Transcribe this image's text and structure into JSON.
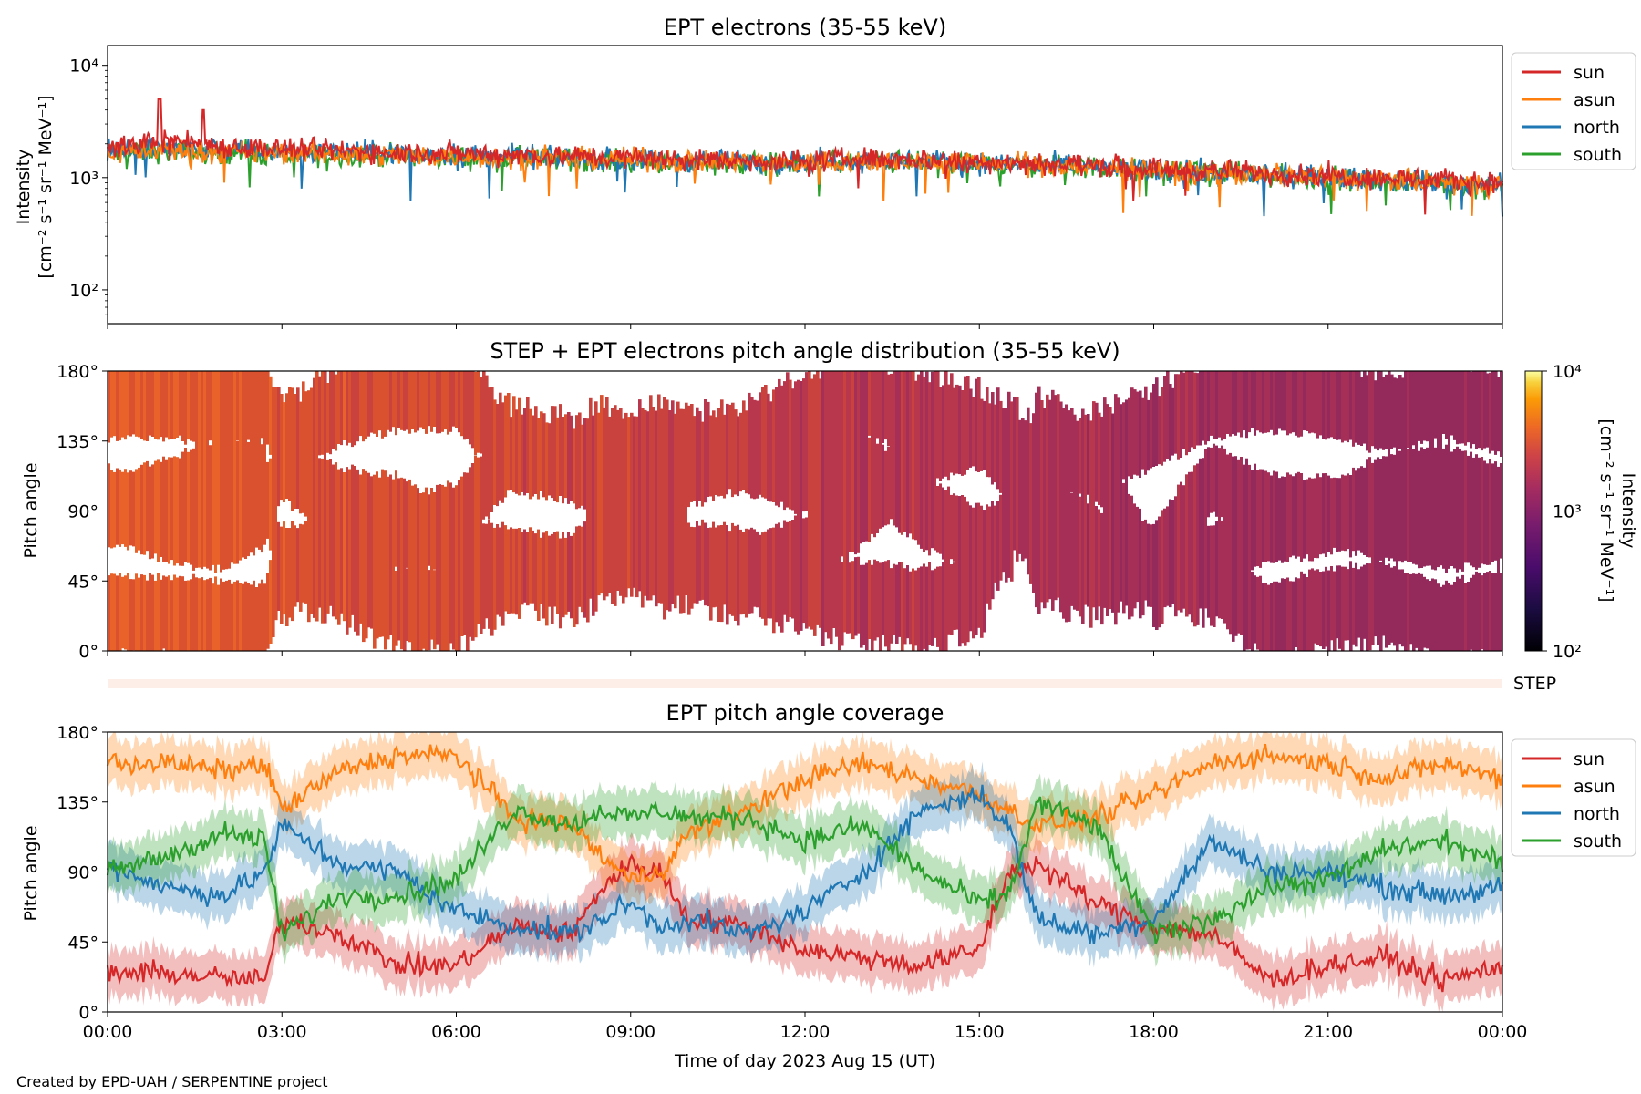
{
  "figure": {
    "credit": "Created by EPD-UAH / SERPENTINE project",
    "xlabel": "Time of day 2023 Aug 15 (UT)",
    "time_ticks": [
      "00:00",
      "03:00",
      "06:00",
      "09:00",
      "12:00",
      "15:00",
      "18:00",
      "21:00",
      "00:00"
    ]
  },
  "colors": {
    "sun": "#d62728",
    "asun": "#ff7f0e",
    "north": "#1f77b4",
    "south": "#2ca02c",
    "step_bar": "#fdeee8"
  },
  "chart_data": [
    {
      "id": "intensity",
      "type": "line",
      "title": "EPT electrons (35-55 keV)",
      "ylabel_line1": "Intensity",
      "ylabel_line2": "[cm⁻² s⁻¹ sr⁻¹ MeV⁻¹]",
      "yscale": "log",
      "ylim": [
        50,
        15000
      ],
      "ytick_labels": [
        "10²",
        "10³",
        "10⁴"
      ],
      "ytick_values": [
        100,
        1000,
        10000
      ],
      "xlim_hours": [
        0,
        24
      ],
      "legend_position": "outside-right",
      "x_hours": [
        0,
        1,
        2,
        3,
        4,
        5,
        6,
        7,
        8,
        9,
        10,
        11,
        12,
        13,
        14,
        15,
        16,
        17,
        18,
        19,
        20,
        21,
        22,
        23,
        24
      ],
      "series": [
        {
          "name": "sun",
          "values": [
            1800,
            2200,
            1900,
            1800,
            1750,
            1700,
            1650,
            1600,
            1550,
            1500,
            1450,
            1420,
            1400,
            1500,
            1450,
            1400,
            1350,
            1300,
            1200,
            1150,
            1100,
            1050,
            1000,
            950,
            900
          ]
        },
        {
          "name": "asun",
          "values": [
            1700,
            1750,
            1700,
            1650,
            1650,
            1600,
            1550,
            1500,
            1500,
            1450,
            1400,
            1380,
            1350,
            1400,
            1380,
            1350,
            1300,
            1250,
            1150,
            1100,
            1050,
            1000,
            950,
            900,
            850
          ]
        },
        {
          "name": "north",
          "values": [
            1750,
            1800,
            1750,
            1700,
            1700,
            1650,
            1600,
            1550,
            1500,
            1450,
            1400,
            1400,
            1380,
            1420,
            1400,
            1350,
            1300,
            1250,
            1150,
            1100,
            1050,
            1000,
            950,
            900,
            850
          ]
        },
        {
          "name": "south",
          "values": [
            1650,
            1700,
            1650,
            1600,
            1600,
            1550,
            1500,
            1500,
            1450,
            1400,
            1380,
            1350,
            1330,
            1380,
            1350,
            1320,
            1280,
            1230,
            1130,
            1080,
            1030,
            980,
            930,
            880,
            830
          ]
        }
      ],
      "peaks": [
        {
          "series": "sun",
          "x_hours": 0.9,
          "value": 5000
        },
        {
          "series": "sun",
          "x_hours": 1.65,
          "value": 4000
        }
      ]
    },
    {
      "id": "pad",
      "type": "heatmap",
      "title": "STEP + EPT electrons pitch angle distribution (35-55 keV)",
      "ylabel": "Pitch angle",
      "ytick_labels": [
        "0°",
        "45°",
        "90°",
        "135°",
        "180°"
      ],
      "ytick_values": [
        0,
        45,
        90,
        135,
        180
      ],
      "ylim": [
        0,
        180
      ],
      "xlim_hours": [
        0,
        24
      ],
      "colorbar": {
        "scale": "log",
        "range": [
          100,
          10000
        ],
        "tick_labels": [
          "10²",
          "10³",
          "10⁴"
        ],
        "tick_values": [
          100,
          1000,
          10000
        ],
        "label_line1": "Intensity",
        "label_line2": "[cm⁻² s⁻¹ sr⁻¹ MeV⁻¹]",
        "colormap": "inferno"
      },
      "step_label": "STEP"
    },
    {
      "id": "coverage",
      "type": "line",
      "title": "EPT pitch angle coverage",
      "ylabel": "Pitch angle",
      "ytick_labels": [
        "0°",
        "45°",
        "90°",
        "135°",
        "180°"
      ],
      "ytick_values": [
        0,
        45,
        90,
        135,
        180
      ],
      "ylim": [
        0,
        180
      ],
      "xlim_hours": [
        0,
        24
      ],
      "legend_position": "outside-right",
      "band_halfwidth_deg": 15,
      "x_hours": [
        0,
        1,
        2,
        2.7,
        3,
        4,
        5,
        6,
        7,
        8,
        8.5,
        9,
        9.5,
        10,
        11,
        12,
        13,
        14,
        15,
        15.5,
        16,
        17,
        18,
        19,
        20,
        21,
        22,
        23,
        24
      ],
      "series": [
        {
          "name": "sun",
          "values": [
            25,
            25,
            22,
            20,
            60,
            50,
            30,
            30,
            55,
            50,
            80,
            95,
            90,
            60,
            55,
            40,
            35,
            30,
            40,
            90,
            95,
            70,
            55,
            50,
            20,
            30,
            35,
            20,
            30
          ]
        },
        {
          "name": "asun",
          "values": [
            160,
            160,
            155,
            160,
            130,
            155,
            165,
            165,
            125,
            120,
            100,
            85,
            90,
            115,
            130,
            150,
            160,
            150,
            140,
            130,
            120,
            125,
            140,
            160,
            165,
            160,
            150,
            160,
            150
          ]
        },
        {
          "name": "north",
          "values": [
            95,
            80,
            75,
            90,
            120,
            95,
            90,
            65,
            55,
            50,
            60,
            70,
            55,
            60,
            50,
            65,
            90,
            130,
            140,
            120,
            60,
            50,
            60,
            110,
            90,
            90,
            80,
            75,
            80
          ]
        },
        {
          "name": "south",
          "values": [
            90,
            100,
            115,
            110,
            50,
            75,
            75,
            85,
            130,
            120,
            130,
            125,
            130,
            125,
            125,
            110,
            120,
            90,
            70,
            75,
            135,
            120,
            50,
            60,
            80,
            85,
            105,
            110,
            95
          ]
        }
      ]
    }
  ]
}
